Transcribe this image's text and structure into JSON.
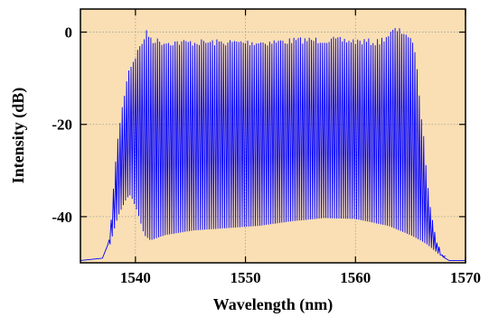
{
  "chart_data": {
    "type": "line",
    "xlabel": "Wavelength (nm)",
    "ylabel": "Intensity (dB)",
    "xlim": [
      1535,
      1570
    ],
    "ylim": [
      -50,
      5
    ],
    "xticks": [
      1540,
      1550,
      1560,
      1570
    ],
    "yticks": [
      0,
      -20,
      -40
    ],
    "grid": true,
    "colors": {
      "plot_background": "#f9dfb3",
      "line": "#0000ff",
      "grid": "#a0a0a0"
    },
    "series": [
      {
        "description_points": [
          [
            1535,
            -49.5
          ],
          [
            1537.0,
            -49
          ],
          [
            1537.5,
            -46
          ],
          [
            1538.2,
            -40
          ],
          [
            1539.0,
            -36
          ],
          [
            1539.5,
            -35
          ],
          [
            1540.2,
            -39
          ],
          [
            1540.8,
            -44
          ],
          [
            1541.3,
            -45
          ],
          [
            1542.5,
            -44
          ],
          [
            1545.0,
            -43
          ],
          [
            1548.0,
            -42.5
          ],
          [
            1551.0,
            -42
          ],
          [
            1554.0,
            -41
          ],
          [
            1557.0,
            -40.3
          ],
          [
            1560.0,
            -40.5
          ],
          [
            1563.0,
            -42
          ],
          [
            1565.0,
            -44
          ],
          [
            1565.8,
            -45
          ],
          [
            1566.5,
            -46
          ],
          [
            1567.5,
            -48
          ],
          [
            1568.5,
            -49.5
          ],
          [
            1570,
            -49.5
          ]
        ],
        "peak_envelope": [
          [
            1537.5,
            -45
          ],
          [
            1538.3,
            -22
          ],
          [
            1539.2,
            -8
          ],
          [
            1540.2,
            -3
          ],
          [
            1540.9,
            0.5
          ],
          [
            1541.5,
            -1
          ],
          [
            1542.5,
            -1.5
          ],
          [
            1548.0,
            -1.5
          ],
          [
            1552.0,
            -1.5
          ],
          [
            1555.0,
            -1
          ],
          [
            1558.0,
            -1
          ],
          [
            1562.0,
            -1.5
          ],
          [
            1563.5,
            1.2
          ],
          [
            1564.5,
            0.5
          ],
          [
            1565.3,
            -3
          ],
          [
            1566.0,
            -20
          ],
          [
            1566.6,
            -35
          ],
          [
            1567.3,
            -45
          ],
          [
            1568.0,
            -49
          ]
        ],
        "comb_spacing_nm": 0.2
      }
    ]
  }
}
